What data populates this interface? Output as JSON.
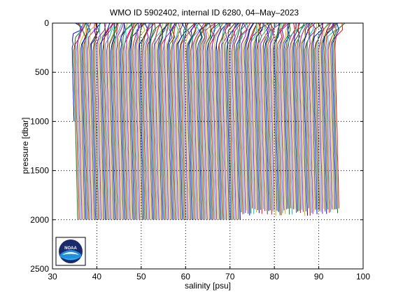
{
  "chart_data": {
    "type": "line",
    "title": "WMO ID 5902402, internal ID 6280, 04–May–2023",
    "xlabel": "salinity [psu]",
    "ylabel": "pressure [dbar]",
    "xlim": [
      30,
      100
    ],
    "ylim": [
      0,
      2500
    ],
    "y_reversed": true,
    "grid": true,
    "grid_style": "dotted",
    "xticks": [
      "30",
      "40",
      "50",
      "60",
      "70",
      "80",
      "90",
      "100"
    ],
    "yticks": [
      "0",
      "500",
      "1000",
      "1500",
      "2000",
      "2500"
    ],
    "xtick_values": [
      30,
      40,
      50,
      60,
      70,
      80,
      90,
      100
    ],
    "ytick_values": [
      0,
      500,
      1000,
      1500,
      2000,
      2500
    ],
    "series_colors": [
      "#0000ff",
      "#008000",
      "#ff0000",
      "#00bfbf",
      "#bf00bf",
      "#bfbf00",
      "#404040"
    ],
    "profile_offset_note": "",
    "profiles": {
      "count": 192,
      "salinity_start_at_bottom": 35.5,
      "salinity_step": 0.31,
      "surface_shift": -1.2,
      "deep_profiles_max_pressure": 2000,
      "shallow_start_index": 120,
      "shallow_max_pressure_range": [
        1880,
        1960
      ],
      "shallow_gap_top_pressure": 1130,
      "first_profile_max_pressure": 1000
    }
  },
  "logo": {
    "name": "noaa-logo",
    "text": "NOAA",
    "colors": {
      "navy": "#1b2a6b",
      "blue": "#1f8fe0",
      "light": "#35b8f0"
    }
  }
}
